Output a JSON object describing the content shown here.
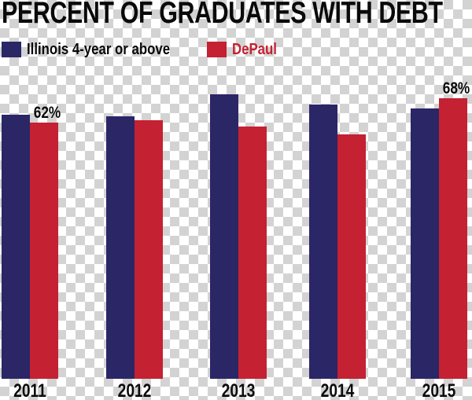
{
  "title": "PERCENT OF GRADUATES WITH DEBT",
  "legend": [
    {
      "label": "Illinois 4-year or above",
      "color": "#2b2666"
    },
    {
      "label": "DePaul",
      "color": "#c42132"
    }
  ],
  "colors": {
    "illinois_blue": "#2b2666",
    "depaul_red": "#c42132",
    "title_black": "#0a0a0a",
    "checker_gray": "#d3d3d3",
    "checker_white": "#ffffff"
  },
  "chart_data": {
    "type": "bar",
    "title": "PERCENT OF GRADUATES WITH DEBT",
    "categories": [
      "2011",
      "2012",
      "2013",
      "2014",
      "2015"
    ],
    "series": [
      {
        "name": "Illinois 4-year or above",
        "color": "#2b2666",
        "values": [
          64,
          63.5,
          69,
          66.5,
          65.5
        ]
      },
      {
        "name": "DePaul",
        "color": "#c42132",
        "values": [
          62,
          62.5,
          61,
          59,
          68
        ]
      }
    ],
    "annotations": [
      {
        "category": "2011",
        "series": "DePaul",
        "text": "62%"
      },
      {
        "category": "2015",
        "series": "DePaul",
        "text": "68%"
      }
    ],
    "ylim": [
      0,
      100
    ],
    "grid": false,
    "axes_shown": false,
    "legend_position": "top-left",
    "background": "transparency-checkerboard"
  }
}
